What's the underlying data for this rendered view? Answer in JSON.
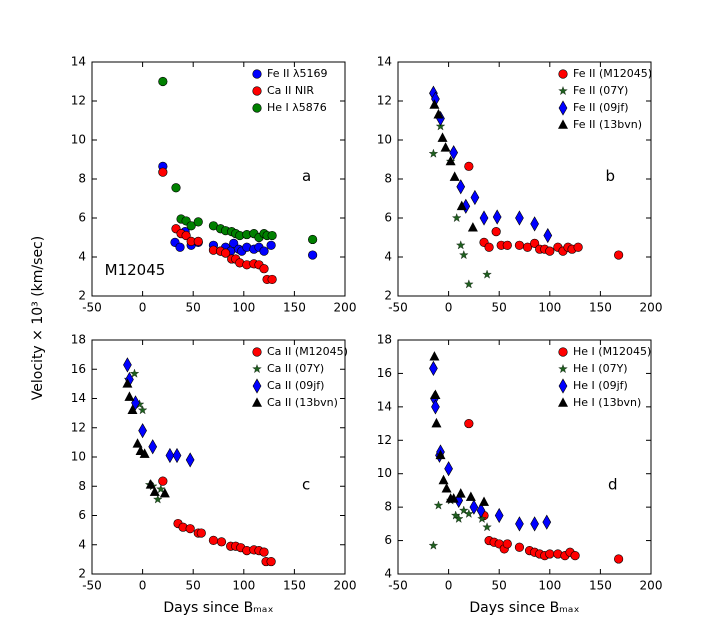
{
  "ylabel": "Velocity × 10³ (km/sec)",
  "chart_data": [
    {
      "type": "scatter",
      "xlim": [
        -50,
        200
      ],
      "xticks": [
        -50,
        0,
        50,
        100,
        150,
        200
      ],
      "ylim": [
        2,
        14
      ],
      "yticks": [
        2,
        4,
        6,
        8,
        10,
        12,
        14
      ],
      "legend": "upper right",
      "annotations": [
        "a",
        "M12045"
      ],
      "series": [
        {
          "name": "Fe II λ5169",
          "color": "#0000ff",
          "marker": "o",
          "x": [
            20,
            32,
            37,
            42,
            48,
            55,
            70,
            77,
            82,
            87,
            90,
            95,
            98,
            103,
            110,
            115,
            120,
            127,
            168
          ],
          "values": [
            8.65,
            4.75,
            4.5,
            5.3,
            4.6,
            4.75,
            4.6,
            4.3,
            4.5,
            4.3,
            4.7,
            4.4,
            4.3,
            4.5,
            4.4,
            4.5,
            4.3,
            4.6,
            4.1
          ]
        },
        {
          "name": "Ca II NIR",
          "color": "#ff0000",
          "marker": "o",
          "x": [
            20,
            33,
            38,
            43,
            48,
            55,
            70,
            77,
            82,
            88,
            92,
            96,
            103,
            110,
            115,
            120,
            123,
            128
          ],
          "values": [
            8.35,
            5.45,
            5.2,
            5.1,
            4.8,
            4.8,
            4.35,
            4.3,
            4.2,
            3.9,
            3.9,
            3.7,
            3.6,
            3.65,
            3.6,
            3.4,
            2.85,
            2.85
          ]
        },
        {
          "name": "He I λ5876",
          "color": "#008000",
          "marker": "o",
          "x": [
            20,
            33,
            38,
            43,
            48,
            55,
            70,
            77,
            82,
            88,
            92,
            96,
            103,
            110,
            115,
            120,
            123,
            128,
            168
          ],
          "values": [
            13.0,
            7.55,
            5.95,
            5.85,
            5.6,
            5.8,
            5.6,
            5.45,
            5.35,
            5.3,
            5.2,
            5.1,
            5.15,
            5.2,
            5.0,
            5.2,
            5.1,
            5.1,
            4.9
          ]
        }
      ]
    },
    {
      "type": "scatter",
      "xlim": [
        -50,
        200
      ],
      "xticks": [
        -50,
        0,
        50,
        100,
        150,
        200
      ],
      "ylim": [
        2,
        14
      ],
      "yticks": [
        2,
        4,
        6,
        8,
        10,
        12,
        14
      ],
      "legend": "upper right",
      "annotations": [
        "b"
      ],
      "series": [
        {
          "name": "Fe II (M12045)",
          "color": "#ff0000",
          "marker": "o",
          "x": [
            20,
            35,
            40,
            47,
            52,
            58,
            70,
            78,
            85,
            90,
            95,
            100,
            108,
            113,
            118,
            122,
            128,
            168
          ],
          "values": [
            8.65,
            4.75,
            4.5,
            5.3,
            4.6,
            4.6,
            4.6,
            4.5,
            4.7,
            4.4,
            4.4,
            4.3,
            4.5,
            4.3,
            4.5,
            4.4,
            4.5,
            4.1
          ]
        },
        {
          "name": "Fe II (07Y)",
          "color": "#1f5f1f",
          "marker": "*",
          "x": [
            -15,
            -8,
            2,
            8,
            12,
            15,
            20,
            38
          ],
          "values": [
            9.3,
            10.7,
            8.9,
            6.0,
            4.6,
            4.1,
            2.6,
            3.1
          ]
        },
        {
          "name": "Fe II (09jf)",
          "color": "#0000ff",
          "marker": "d",
          "x": [
            -15,
            -13,
            -8,
            5,
            12,
            17,
            26,
            35,
            48,
            70,
            85,
            98
          ],
          "values": [
            12.4,
            12.1,
            11.1,
            9.35,
            7.6,
            6.6,
            7.05,
            6.0,
            6.05,
            6.0,
            5.7,
            5.1
          ]
        },
        {
          "name": "Fe II (13bvn)",
          "color": "#000000",
          "marker": "^",
          "x": [
            -14,
            -10,
            -6,
            -3,
            2,
            6,
            13,
            24
          ],
          "values": [
            11.8,
            11.3,
            10.1,
            9.6,
            8.9,
            8.1,
            6.6,
            5.5
          ]
        }
      ]
    },
    {
      "type": "scatter",
      "xlim": [
        -50,
        200
      ],
      "xticks": [
        -50,
        0,
        50,
        100,
        150,
        200
      ],
      "ylim": [
        2,
        18
      ],
      "yticks": [
        2,
        4,
        6,
        8,
        10,
        12,
        14,
        16,
        18
      ],
      "legend": "upper right",
      "annotations": [
        "c"
      ],
      "xlabel": "Days since Bₘₐₓ",
      "series": [
        {
          "name": "Ca II (M12045)",
          "color": "#ff0000",
          "marker": "o",
          "x": [
            20,
            35,
            40,
            47,
            55,
            58,
            70,
            78,
            87,
            92,
            97,
            103,
            110,
            115,
            120,
            122,
            127
          ],
          "values": [
            8.35,
            5.45,
            5.2,
            5.1,
            4.8,
            4.8,
            4.3,
            4.2,
            3.9,
            3.9,
            3.8,
            3.6,
            3.65,
            3.6,
            3.5,
            2.85,
            2.85
          ]
        },
        {
          "name": "Ca II (07Y)",
          "color": "#1f5f1f",
          "marker": "*",
          "x": [
            -14,
            -8,
            -3,
            0,
            7,
            10,
            15,
            18
          ],
          "values": [
            15.3,
            15.7,
            13.6,
            13.2,
            8.1,
            8.0,
            7.1,
            7.8
          ]
        },
        {
          "name": "Ca II (09jf)",
          "color": "#0000ff",
          "marker": "d",
          "x": [
            -15,
            -13,
            -7,
            0,
            10,
            27,
            34,
            47
          ],
          "values": [
            16.3,
            15.3,
            13.7,
            11.8,
            10.7,
            10.1,
            10.1,
            9.8
          ]
        },
        {
          "name": "Ca II (13bvn)",
          "color": "#000000",
          "marker": "^",
          "x": [
            -15,
            -13,
            -10,
            -5,
            -2,
            2,
            8,
            12,
            22
          ],
          "values": [
            15.0,
            14.1,
            13.2,
            10.9,
            10.4,
            10.2,
            8.1,
            7.6,
            7.5
          ]
        }
      ]
    },
    {
      "type": "scatter",
      "xlim": [
        -50,
        200
      ],
      "xticks": [
        -50,
        0,
        50,
        100,
        150,
        200
      ],
      "ylim": [
        4,
        18
      ],
      "yticks": [
        4,
        6,
        8,
        10,
        12,
        14,
        16,
        18
      ],
      "legend": "upper right",
      "annotations": [
        "d"
      ],
      "xlabel": "Days since Bₘₐₓ",
      "series": [
        {
          "name": "He I (M12045)",
          "color": "#ff0000",
          "marker": "o",
          "x": [
            20,
            35,
            40,
            45,
            50,
            55,
            58,
            70,
            80,
            85,
            90,
            95,
            100,
            108,
            115,
            120,
            125,
            168
          ],
          "values": [
            13.0,
            7.5,
            6.0,
            5.9,
            5.8,
            5.5,
            5.8,
            5.6,
            5.4,
            5.3,
            5.2,
            5.1,
            5.2,
            5.2,
            5.1,
            5.3,
            5.1,
            4.9
          ]
        },
        {
          "name": "He I (07Y)",
          "color": "#1f5f1f",
          "marker": "*",
          "x": [
            -15,
            -10,
            2,
            7,
            10,
            15,
            20,
            33,
            38
          ],
          "values": [
            5.7,
            8.1,
            8.4,
            7.5,
            7.3,
            7.8,
            7.6,
            7.3,
            6.8
          ]
        },
        {
          "name": "He I (09jf)",
          "color": "#0000ff",
          "marker": "d",
          "x": [
            -15,
            -14,
            -13,
            -9,
            -8,
            0,
            10,
            25,
            32,
            50,
            70,
            85,
            97
          ],
          "values": [
            16.3,
            14.5,
            14.0,
            11.1,
            11.3,
            10.3,
            8.4,
            8.0,
            7.8,
            7.5,
            7.0,
            7.0,
            7.1
          ]
        },
        {
          "name": "He I (13bvn)",
          "color": "#000000",
          "marker": "^",
          "x": [
            -14,
            -13,
            -12,
            -8,
            -5,
            -2,
            2,
            5,
            12,
            22,
            35
          ],
          "values": [
            17.0,
            14.7,
            13.0,
            11.1,
            9.6,
            9.1,
            8.5,
            8.5,
            8.8,
            8.6,
            8.3
          ]
        }
      ]
    }
  ]
}
